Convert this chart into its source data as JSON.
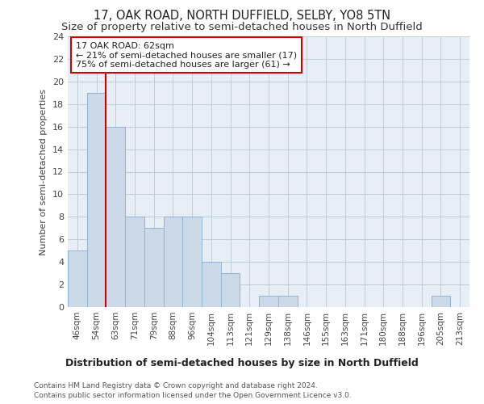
{
  "title": "17, OAK ROAD, NORTH DUFFIELD, SELBY, YO8 5TN",
  "subtitle": "Size of property relative to semi-detached houses in North Duffield",
  "xlabel_bottom": "Distribution of semi-detached houses by size in North Duffield",
  "ylabel": "Number of semi-detached properties",
  "footer1": "Contains HM Land Registry data © Crown copyright and database right 2024.",
  "footer2": "Contains public sector information licensed under the Open Government Licence v3.0.",
  "categories": [
    "46sqm",
    "54sqm",
    "63sqm",
    "71sqm",
    "79sqm",
    "88sqm",
    "96sqm",
    "104sqm",
    "113sqm",
    "121sqm",
    "129sqm",
    "138sqm",
    "146sqm",
    "155sqm",
    "163sqm",
    "171sqm",
    "180sqm",
    "188sqm",
    "196sqm",
    "205sqm",
    "213sqm"
  ],
  "values": [
    5,
    19,
    16,
    8,
    7,
    8,
    8,
    4,
    3,
    0,
    1,
    1,
    0,
    0,
    0,
    0,
    0,
    0,
    0,
    1,
    0
  ],
  "bar_color": "#ccd9e8",
  "bar_edge_color": "#8fb4d4",
  "red_line_index": 2,
  "red_line_color": "#cc0000",
  "annotation_text": "17 OAK ROAD: 62sqm\n← 21% of semi-detached houses are smaller (17)\n75% of semi-detached houses are larger (61) →",
  "annotation_box_color": "#ffffff",
  "annotation_box_edge": "#cc0000",
  "ylim": [
    0,
    24
  ],
  "yticks": [
    0,
    2,
    4,
    6,
    8,
    10,
    12,
    14,
    16,
    18,
    20,
    22,
    24
  ],
  "bg_color": "#ffffff",
  "plot_bg_color": "#e8eef5",
  "grid_color": "#c0cdd8",
  "title_fontsize": 10.5,
  "subtitle_fontsize": 9.5
}
